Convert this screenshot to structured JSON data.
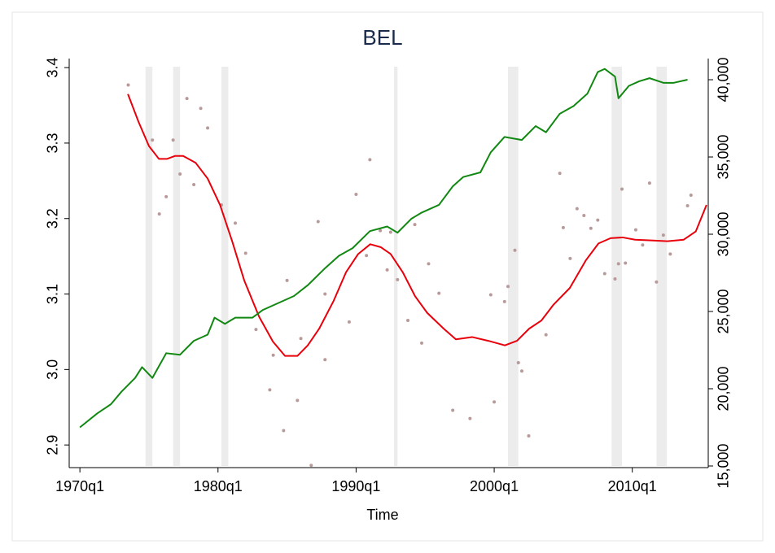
{
  "chart_data": {
    "type": "line",
    "title": "BEL",
    "xlabel": "Time",
    "xlim": [
      36.9,
      222.0
    ],
    "xticks": [
      {
        "value": 40,
        "label": "1970q1"
      },
      {
        "value": 80,
        "label": "1980q1"
      },
      {
        "value": 120,
        "label": "1990q1"
      },
      {
        "value": 160,
        "label": "2000q1"
      },
      {
        "value": 200,
        "label": "2010q1"
      }
    ],
    "ylim": [
      2.87,
      3.412
    ],
    "yticks": [
      2.9,
      {
        "value": 3,
        "label": "3.0"
      },
      3.1,
      3.2,
      3.3,
      3.4
    ],
    "y2lim": [
      14895,
      41370
    ],
    "y2ticks": [
      {
        "value": 15000,
        "label": "15,000"
      },
      {
        "value": 20000,
        "label": "20,000"
      },
      {
        "value": 25000,
        "label": "25,000"
      },
      {
        "value": 30000,
        "label": "30,000"
      },
      {
        "value": 35000,
        "label": "35,000"
      },
      {
        "value": 40000,
        "label": "40,000"
      }
    ],
    "shaded_periods": [
      [
        59,
        61
      ],
      [
        67,
        69
      ],
      [
        81,
        83
      ],
      [
        131,
        132
      ],
      [
        164,
        167
      ],
      [
        194,
        197
      ],
      [
        207,
        210
      ]
    ],
    "shade_color": "#ececec",
    "series": [
      {
        "type": "scatter",
        "color": "#b89a9a",
        "x": [
          54,
          61,
          63,
          65,
          67,
          69,
          71,
          73,
          75,
          77,
          81,
          85,
          88,
          91,
          95,
          96,
          99,
          100,
          103,
          104,
          107,
          109,
          111,
          111,
          118,
          120,
          123,
          124,
          127,
          129,
          130,
          132,
          135,
          137,
          139,
          141,
          144,
          148,
          153,
          159,
          160,
          163,
          164,
          166,
          167,
          168,
          170,
          175,
          179,
          180,
          182,
          184,
          186,
          188,
          190,
          192,
          195,
          196,
          197,
          198,
          201,
          203,
          205,
          207,
          209,
          211,
          216,
          217
        ],
        "values": [
          3.377,
          3.304,
          3.206,
          3.229,
          3.304,
          3.259,
          3.359,
          3.245,
          3.346,
          3.32,
          3.218,
          3.194,
          3.154,
          3.053,
          2.973,
          3.019,
          2.919,
          3.118,
          2.959,
          3.041,
          2.873,
          3.196,
          3.013,
          3.1,
          3.063,
          3.232,
          3.151,
          3.278,
          3.184,
          3.132,
          3.182,
          3.119,
          3.065,
          3.192,
          3.035,
          3.14,
          3.101,
          2.946,
          2.935,
          3.099,
          2.957,
          3.09,
          3.11,
          3.158,
          3.009,
          2.998,
          2.912,
          3.046,
          3.26,
          3.188,
          3.147,
          3.213,
          3.204,
          3.187,
          3.198,
          3.127,
          3.12,
          3.14,
          3.239,
          3.141,
          3.185,
          3.165,
          3.247,
          3.116,
          3.178,
          3.153,
          3.217,
          3.231
        ]
      },
      {
        "type": "line",
        "color": "#e8000b",
        "x": [
          53.9,
          57.0,
          60.0,
          62.9,
          65.2,
          67.6,
          69.9,
          73.5,
          77.0,
          80.6,
          84.1,
          87.6,
          91.9,
          95.9,
          99.4,
          103.0,
          106.0,
          109.3,
          113.5,
          117.1,
          120.6,
          124.1,
          127.2,
          130.0,
          133.5,
          137.1,
          140.6,
          145.4,
          148.9,
          153.6,
          158.3,
          163.1,
          166.6,
          170.1,
          173.7,
          177.2,
          181.9,
          186.6,
          190.2,
          193.7,
          197.2,
          200.8,
          205.5,
          210.2,
          214.9,
          218.4,
          221.5
        ],
        "values": [
          3.365,
          3.328,
          3.296,
          3.279,
          3.279,
          3.283,
          3.283,
          3.274,
          3.253,
          3.218,
          3.17,
          3.118,
          3.07,
          3.037,
          3.018,
          3.018,
          3.032,
          3.054,
          3.091,
          3.129,
          3.153,
          3.166,
          3.162,
          3.153,
          3.129,
          3.097,
          3.075,
          3.054,
          3.04,
          3.043,
          3.038,
          3.032,
          3.038,
          3.054,
          3.065,
          3.086,
          3.108,
          3.145,
          3.167,
          3.174,
          3.175,
          3.172,
          3.171,
          3.17,
          3.172,
          3.183,
          3.218
        ]
      },
      {
        "type": "line",
        "axis": "y2",
        "color": "#118811",
        "x": [
          40,
          45,
          49,
          52,
          56,
          58,
          61,
          63,
          65,
          69,
          73,
          77,
          79,
          82,
          85,
          90,
          93,
          98,
          102,
          106,
          111,
          115,
          119,
          124,
          129,
          132,
          136,
          139,
          144,
          148,
          151,
          156,
          159,
          163,
          168,
          172,
          175,
          179,
          183,
          187,
          190,
          192,
          195,
          196,
          199,
          202,
          205,
          209,
          212,
          216
        ],
        "values": [
          17500,
          18400,
          19000,
          19800,
          20700,
          21400,
          20700,
          21500,
          22300,
          22200,
          23100,
          23500,
          24600,
          24200,
          24600,
          24600,
          25100,
          25600,
          26000,
          26700,
          27800,
          28600,
          29100,
          30200,
          30500,
          30100,
          31000,
          31400,
          31900,
          33100,
          33700,
          34000,
          35300,
          36300,
          36100,
          37000,
          36600,
          37800,
          38300,
          39100,
          40500,
          40700,
          40200,
          38800,
          39600,
          39900,
          40100,
          39800,
          39800,
          40000
        ]
      }
    ]
  }
}
